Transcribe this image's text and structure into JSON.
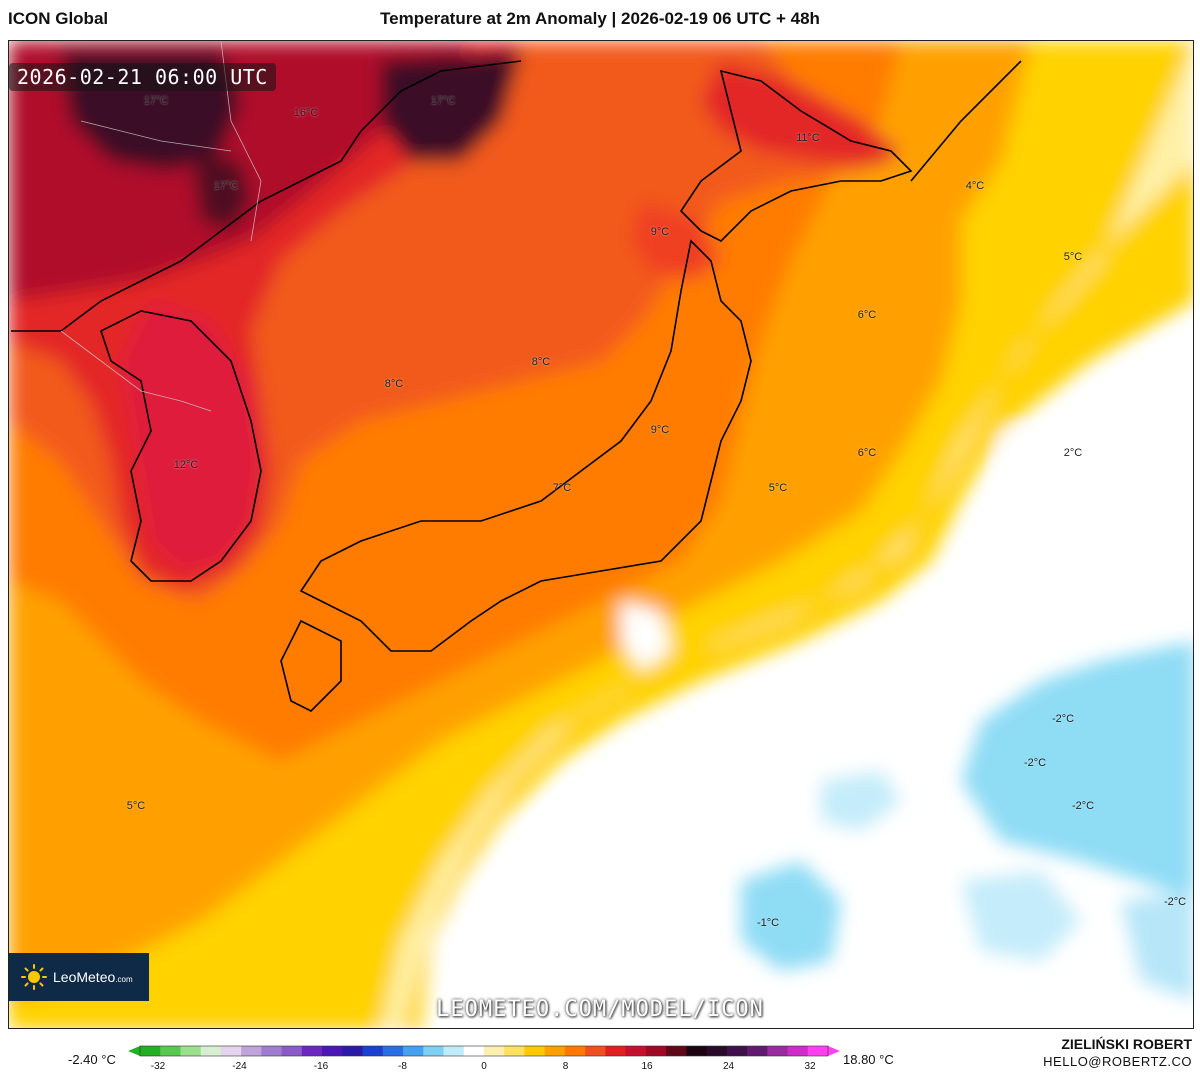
{
  "header": {
    "model_name": "ICON Global",
    "title": "Temperature at 2m Anomaly | 2026-02-19 06 UTC + 48h"
  },
  "map": {
    "timestamp": "2026-02-21 06:00 UTC",
    "region": "Japan, Korea and surrounding seas",
    "labels": [
      "17°C",
      "16°C",
      "17°C",
      "17°C",
      "11°C",
      "4°C",
      "9°C",
      "5°C",
      "6°C",
      "8°C",
      "8°C",
      "9°C",
      "6°C",
      "2°C",
      "12°C",
      "7°C",
      "5°C",
      "-2°C",
      "-2°C",
      "-2°C",
      "5°C",
      "-1°C",
      "-2°C"
    ]
  },
  "branding": {
    "logo_text": "LeoMeteo",
    "logo_suffix": ".com",
    "watermark": "LEOMETEO.COM/MODEL/ICON"
  },
  "colorbar": {
    "min_value": "-2.40 °C",
    "max_value": "18.80 °C",
    "ticks": [
      "-32",
      "-24",
      "-16",
      "-8",
      "0",
      "8",
      "16",
      "24",
      "32"
    ],
    "colors": [
      "#22b022",
      "#58c94e",
      "#9ce08e",
      "#d8eed2",
      "#e4d4ee",
      "#c0a2dc",
      "#a07cd0",
      "#8a5ac8",
      "#6a28c0",
      "#4a16b8",
      "#2a1aa8",
      "#1a40d0",
      "#2a6ee6",
      "#46a0f0",
      "#7ed0f4",
      "#c0ecfa",
      "#ffffff",
      "#fff0b0",
      "#ffe060",
      "#ffc800",
      "#ffa000",
      "#ff7800",
      "#f05020",
      "#e02020",
      "#c4102c",
      "#a00824",
      "#600818",
      "#1c0410",
      "#2a0a2a",
      "#40104a",
      "#601a70",
      "#9a2aa0",
      "#d02ac8",
      "#ff40f0"
    ]
  },
  "author": {
    "name": "ZIELIŃSKI ROBERT",
    "email": "HELLO@ROBERTZ.CO"
  }
}
